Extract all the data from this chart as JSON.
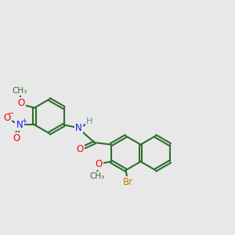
{
  "bg_color": "#e8e8e8",
  "bond_color": "#2d6e2d",
  "bond_width": 1.5,
  "dbo": 0.055,
  "atom_colors": {
    "C": "#2d6e2d",
    "N": "#1a1aff",
    "O": "#ff0000",
    "H": "#5a9a9a",
    "Br": "#cc7700",
    "Np": "#1a1aff"
  },
  "fs": 8.5,
  "fs_small": 7.5
}
